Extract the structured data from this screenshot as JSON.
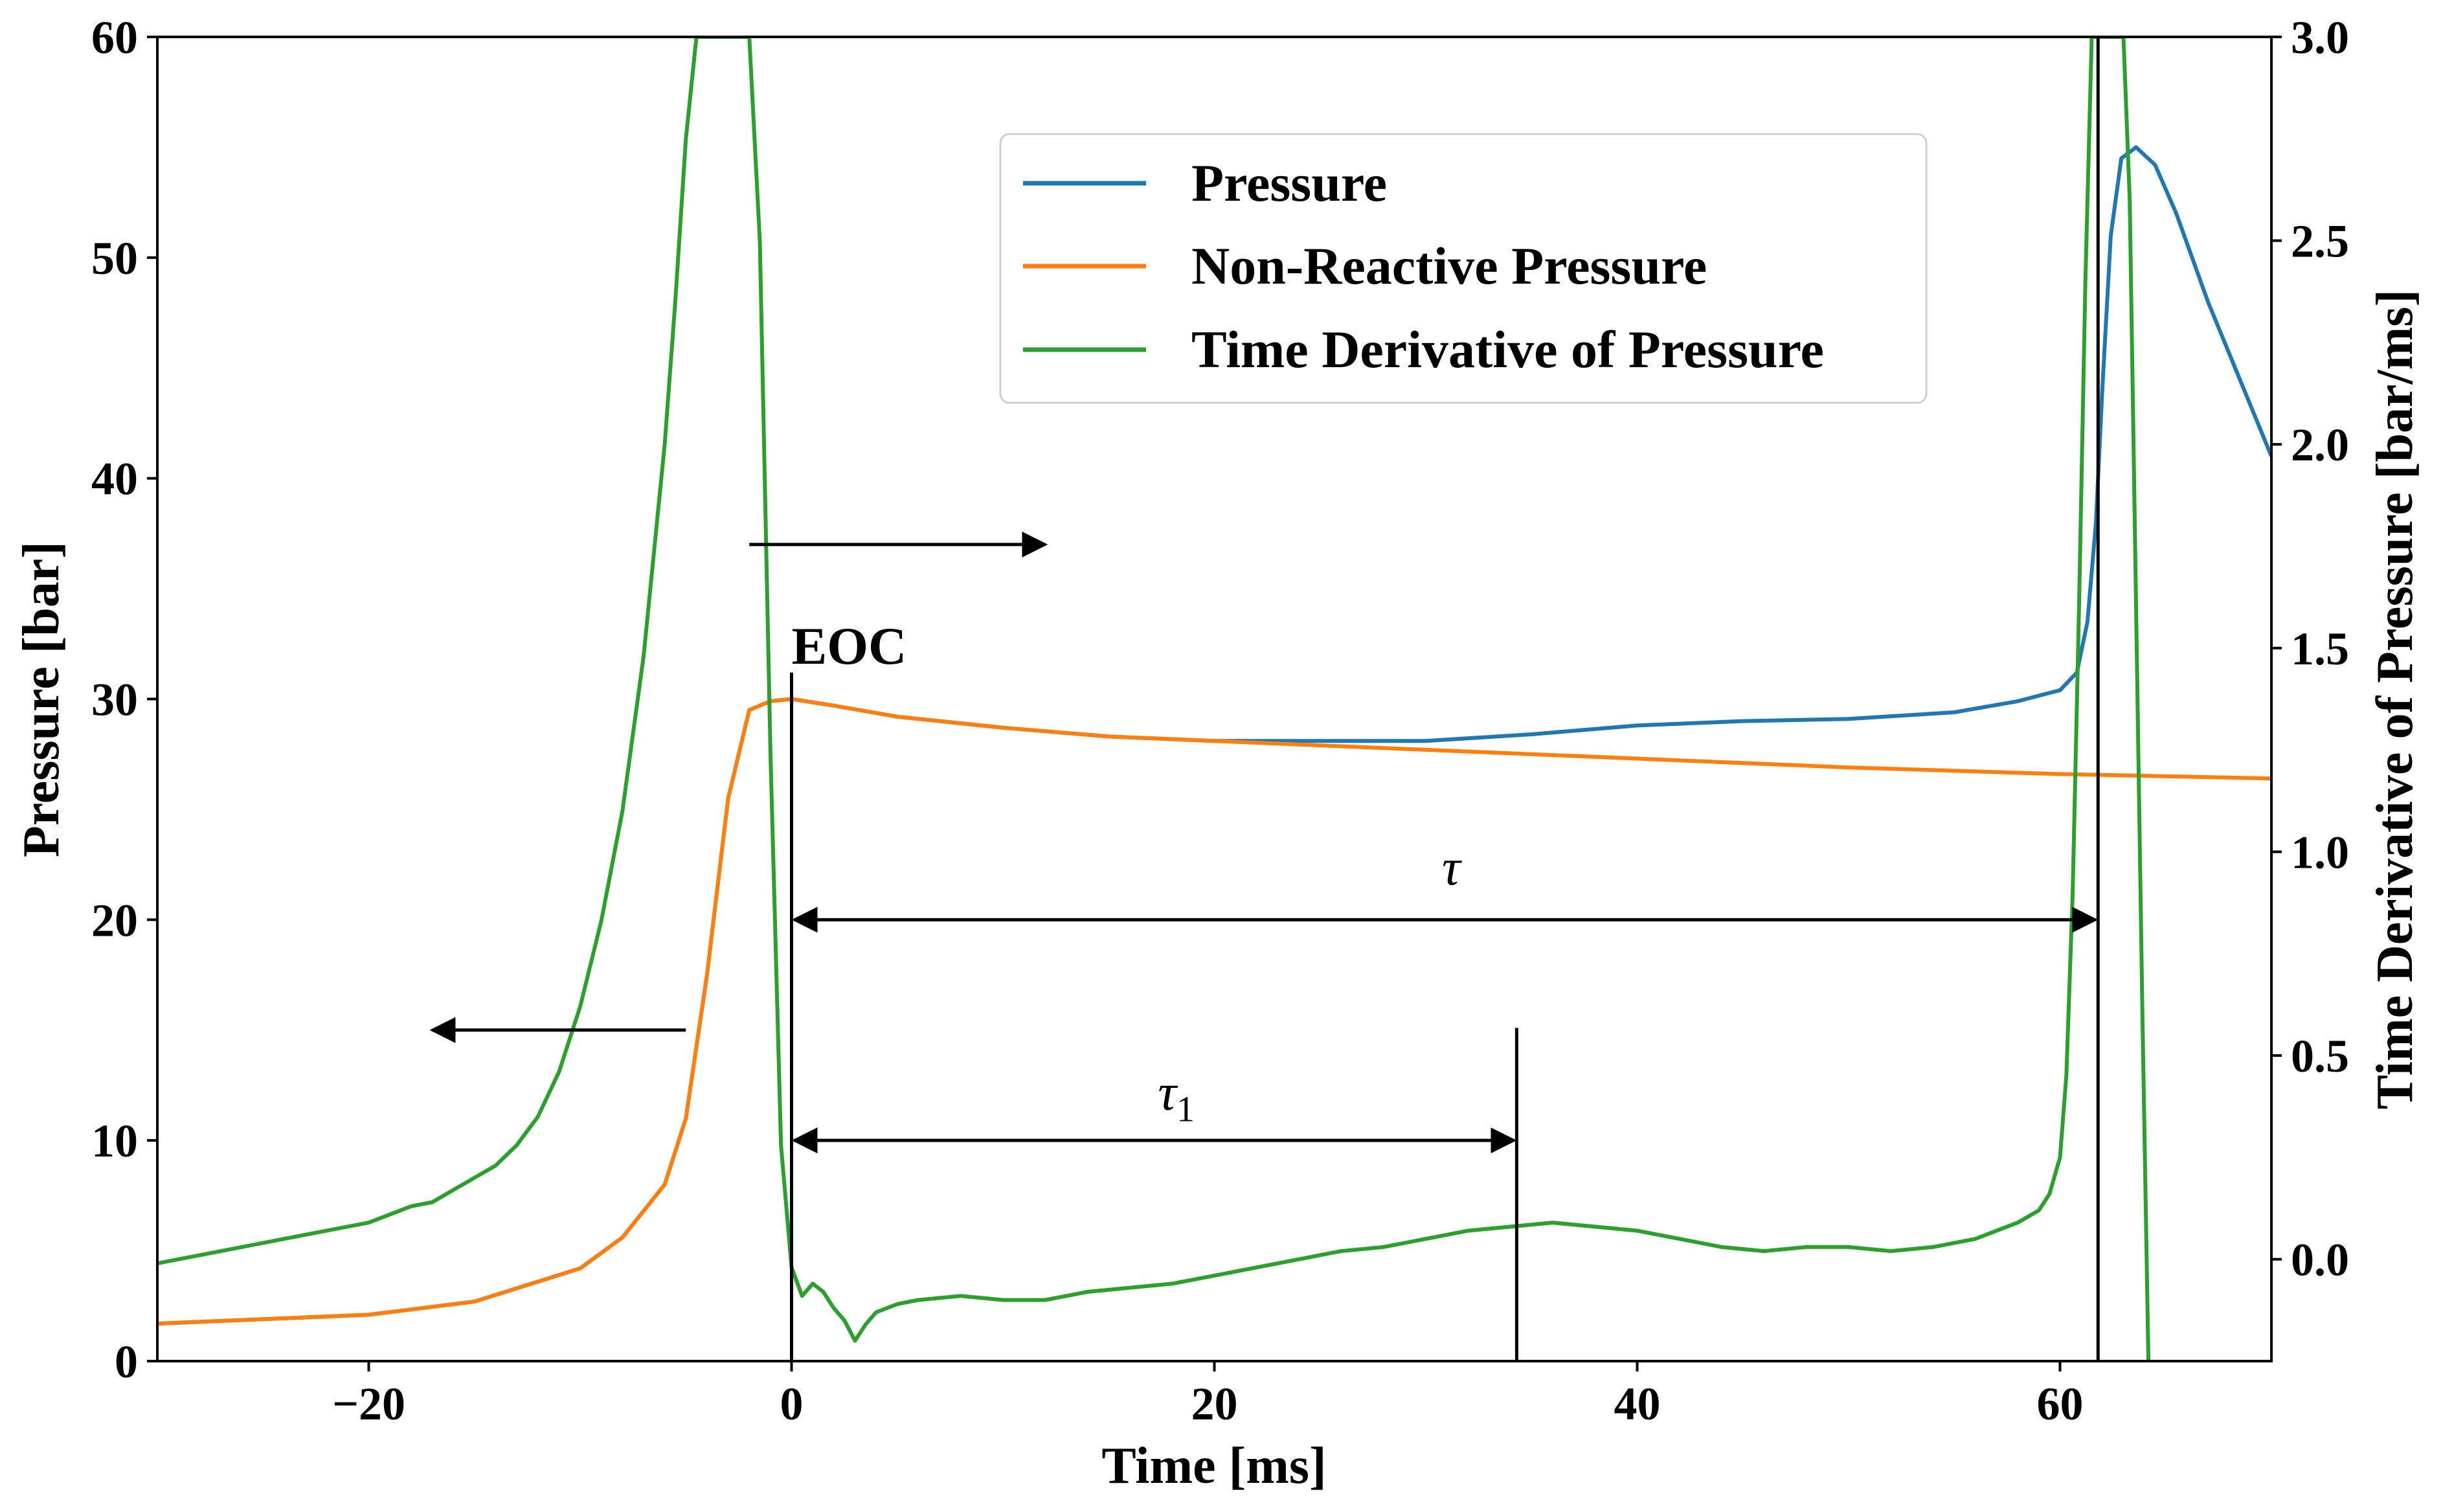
{
  "chart_data": {
    "type": "line",
    "xlabel": "Time [ms]",
    "ylabel": "Pressure [bar]",
    "y2label": "Time Derivative of Pressure [bar/ms]",
    "xlim": [
      -30,
      70
    ],
    "ylim": [
      0,
      60
    ],
    "y2lim": [
      -0.25,
      3.0
    ],
    "grid": false,
    "legend_position": "top-center",
    "x_ticks": [
      -20,
      0,
      20,
      40,
      60
    ],
    "x_tick_labels": [
      "−20",
      "0",
      "20",
      "40",
      "60"
    ],
    "y_ticks": [
      0,
      10,
      20,
      30,
      40,
      50,
      60
    ],
    "y_tick_labels": [
      "0",
      "10",
      "20",
      "30",
      "40",
      "50",
      "60"
    ],
    "y2_ticks": [
      0.0,
      0.5,
      1.0,
      1.5,
      2.0,
      2.5,
      3.0
    ],
    "y2_tick_labels": [
      "0.0",
      "0.5",
      "1.0",
      "1.5",
      "2.0",
      "2.5",
      "3.0"
    ],
    "series": [
      {
        "name": "Pressure",
        "axis": "left",
        "color": "#1f77b4",
        "x": [
          -30,
          -20,
          -15,
          -10,
          -8,
          -6,
          -5,
          -4,
          -3,
          -2,
          -1,
          0,
          2,
          5,
          10,
          15,
          20,
          25,
          30,
          35,
          40,
          45,
          50,
          55,
          58,
          60,
          60.8,
          61.3,
          61.7,
          62.0,
          62.4,
          62.9,
          63.6,
          64.5,
          65.5,
          67,
          68.5,
          70
        ],
        "y": [
          1.7,
          2.1,
          2.7,
          4.2,
          5.6,
          8.0,
          11.0,
          17.5,
          25.5,
          29.5,
          29.9,
          30.0,
          29.7,
          29.2,
          28.7,
          28.3,
          28.1,
          28.1,
          28.1,
          28.4,
          28.8,
          29.0,
          29.1,
          29.4,
          29.9,
          30.4,
          31.2,
          33.5,
          38.0,
          44.0,
          51.0,
          54.5,
          55.0,
          54.2,
          52.0,
          48.0,
          44.5,
          41.0
        ]
      },
      {
        "name": "Non-Reactive Pressure",
        "axis": "left",
        "color": "#ff7f0e",
        "x": [
          -30,
          -20,
          -15,
          -10,
          -8,
          -6,
          -5,
          -4,
          -3,
          -2,
          -1,
          0,
          2,
          5,
          10,
          15,
          20,
          30,
          40,
          50,
          60,
          70
        ],
        "y": [
          1.7,
          2.1,
          2.7,
          4.2,
          5.6,
          8.0,
          11.0,
          17.5,
          25.5,
          29.5,
          29.9,
          30.0,
          29.7,
          29.2,
          28.7,
          28.3,
          28.1,
          27.7,
          27.3,
          26.9,
          26.6,
          26.4
        ]
      },
      {
        "name": "Time Derivative of Pressure",
        "axis": "right",
        "color": "#2ca02c",
        "x": [
          -30,
          -28,
          -26,
          -24,
          -22,
          -20,
          -18,
          -17,
          -16,
          -15,
          -14,
          -13,
          -12,
          -11,
          -10,
          -9,
          -8,
          -7,
          -6,
          -5.5,
          -5,
          -4.5,
          -4,
          -3.5,
          -3,
          -2.5,
          -2,
          -1.5,
          -1,
          -0.5,
          0,
          0.5,
          1,
          1.5,
          2,
          2.5,
          3,
          3.5,
          4,
          5,
          6,
          8,
          10,
          12,
          14,
          16,
          18,
          20,
          22,
          24,
          26,
          28,
          30,
          32,
          34,
          36,
          38,
          40,
          42,
          44,
          46,
          48,
          50,
          52,
          54,
          56,
          57,
          58,
          59,
          59.5,
          60,
          60.3,
          60.6,
          60.9,
          61.2,
          61.5,
          61.8,
          62.1,
          62.4,
          62.7,
          63.0,
          63.3,
          63.6,
          63.9,
          64.2
        ],
        "y": [
          -0.01,
          0.01,
          0.03,
          0.05,
          0.07,
          0.09,
          0.13,
          0.14,
          0.17,
          0.2,
          0.23,
          0.28,
          0.35,
          0.46,
          0.62,
          0.83,
          1.1,
          1.48,
          2.0,
          2.35,
          2.75,
          3.0,
          3.0,
          3.0,
          3.0,
          3.0,
          3.0,
          2.5,
          1.25,
          0.28,
          -0.02,
          -0.09,
          -0.06,
          -0.08,
          -0.12,
          -0.15,
          -0.2,
          -0.16,
          -0.13,
          -0.11,
          -0.1,
          -0.09,
          -0.1,
          -0.1,
          -0.08,
          -0.07,
          -0.06,
          -0.04,
          -0.02,
          0.0,
          0.02,
          0.03,
          0.05,
          0.07,
          0.08,
          0.09,
          0.08,
          0.07,
          0.05,
          0.03,
          0.02,
          0.03,
          0.03,
          0.02,
          0.03,
          0.05,
          0.07,
          0.09,
          0.12,
          0.16,
          0.25,
          0.45,
          0.9,
          1.6,
          2.4,
          3.0,
          3.0,
          3.0,
          3.0,
          3.0,
          3.0,
          2.6,
          1.6,
          0.6,
          -0.3
        ]
      }
    ],
    "annotations": {
      "eoc_label": "EOC",
      "tau_label": "τ",
      "tau1_label": "τ",
      "tau1_subscript": "1",
      "eoc_time": 0,
      "tau1_end_time": 34.3,
      "tau_end_time": 61.8,
      "tau_arrow_pressure": 20,
      "tau1_arrow_pressure": 10,
      "left_axis_arrow": {
        "from": [
          -5,
          15
        ],
        "to": [
          -17,
          15
        ]
      },
      "right_axis_arrow": {
        "from": [
          -2,
          37
        ],
        "to": [
          12,
          37
        ]
      }
    }
  }
}
